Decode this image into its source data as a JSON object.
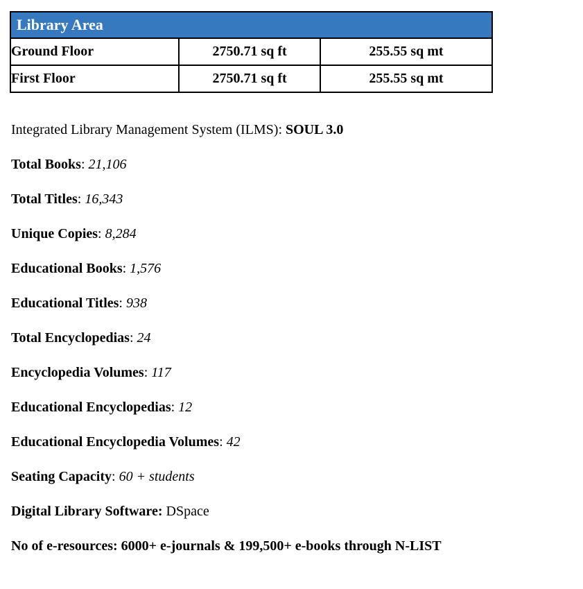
{
  "table": {
    "header": "Library Area",
    "header_bg": "#3679BE",
    "rows": [
      {
        "floor": "Ground Floor",
        "sqft": "2750.71 sq ft",
        "sqmt": "255.55 sq mt"
      },
      {
        "floor": "First Floor",
        "sqft": "2750.71 sq ft",
        "sqmt": "255.55 sq mt"
      }
    ]
  },
  "info_lines": [
    {
      "segments": [
        {
          "text": "Integrated Library Management System (ILMS): ",
          "bold": false,
          "italic": false
        },
        {
          "text": "SOUL 3.0",
          "bold": true,
          "italic": false
        }
      ]
    },
    {
      "segments": [
        {
          "text": "Total Books",
          "bold": true,
          "italic": false
        },
        {
          "text": ": ",
          "bold": false,
          "italic": false
        },
        {
          "text": "21,106",
          "bold": false,
          "italic": true
        }
      ]
    },
    {
      "segments": [
        {
          "text": "Total Titles",
          "bold": true,
          "italic": false
        },
        {
          "text": ": ",
          "bold": false,
          "italic": false
        },
        {
          "text": "16,343",
          "bold": false,
          "italic": true
        }
      ]
    },
    {
      "segments": [
        {
          "text": "Unique Copies",
          "bold": true,
          "italic": false
        },
        {
          "text": ": ",
          "bold": false,
          "italic": false
        },
        {
          "text": "8,284",
          "bold": false,
          "italic": true
        }
      ]
    },
    {
      "segments": [
        {
          "text": "Educational Books",
          "bold": true,
          "italic": false
        },
        {
          "text": ": ",
          "bold": false,
          "italic": false
        },
        {
          "text": "1,576",
          "bold": false,
          "italic": true
        }
      ]
    },
    {
      "segments": [
        {
          "text": "Educational Titles",
          "bold": true,
          "italic": false
        },
        {
          "text": ": ",
          "bold": false,
          "italic": false
        },
        {
          "text": "938",
          "bold": false,
          "italic": true
        }
      ]
    },
    {
      "segments": [
        {
          "text": "Total Encyclopedias",
          "bold": true,
          "italic": false
        },
        {
          "text": ": ",
          "bold": false,
          "italic": false
        },
        {
          "text": "24",
          "bold": false,
          "italic": true
        }
      ]
    },
    {
      "segments": [
        {
          "text": "Encyclopedia Volumes",
          "bold": true,
          "italic": false
        },
        {
          "text": ": ",
          "bold": false,
          "italic": false
        },
        {
          "text": "117",
          "bold": false,
          "italic": true
        }
      ]
    },
    {
      "segments": [
        {
          "text": "Educational Encyclopedias",
          "bold": true,
          "italic": false
        },
        {
          "text": ": ",
          "bold": false,
          "italic": false
        },
        {
          "text": "12",
          "bold": false,
          "italic": true
        }
      ]
    },
    {
      "segments": [
        {
          "text": "Educational Encyclopedia Volumes",
          "bold": true,
          "italic": false
        },
        {
          "text": ": ",
          "bold": false,
          "italic": false
        },
        {
          "text": "42",
          "bold": false,
          "italic": true
        }
      ]
    },
    {
      "segments": [
        {
          "text": "Seating Capacity",
          "bold": true,
          "italic": false
        },
        {
          "text": ": ",
          "bold": false,
          "italic": false
        },
        {
          "text": "60 + students",
          "bold": false,
          "italic": true
        }
      ]
    },
    {
      "segments": [
        {
          "text": "Digital Library Software: ",
          "bold": true,
          "italic": false
        },
        {
          "text": "DSpace",
          "bold": false,
          "italic": false
        }
      ]
    },
    {
      "segments": [
        {
          "text": "No of e-resources: 6000+ e-journals & 199,500+ e-books through N-LIST",
          "bold": true,
          "italic": false
        }
      ]
    }
  ]
}
